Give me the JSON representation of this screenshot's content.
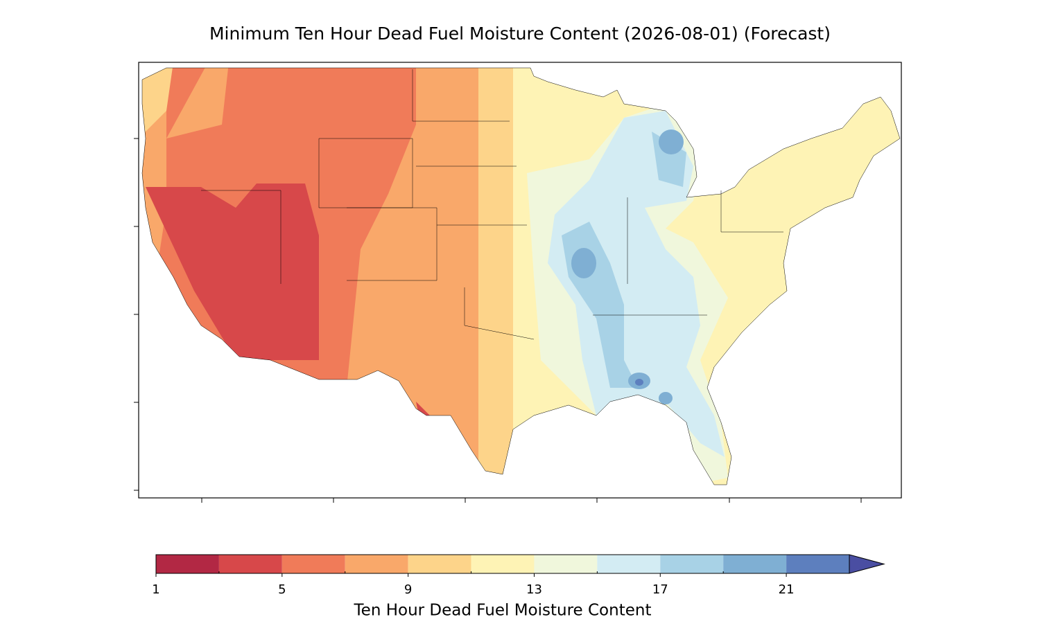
{
  "title": "Minimum Ten Hour Dead Fuel Moisture Content (2026-08-01) (Forecast)",
  "colorbar": {
    "label": "Ten Hour Dead Fuel Moisture Content",
    "levels": [
      1,
      3,
      5,
      7,
      9,
      11,
      13,
      15,
      17,
      19,
      21,
      23
    ],
    "colors": [
      "#b22844",
      "#d7484a",
      "#f07b59",
      "#f9a86a",
      "#fdd48a",
      "#fef3b5",
      "#f0f7dc",
      "#d3ecf3",
      "#a8d2e6",
      "#7fafd3",
      "#5d7fbe"
    ],
    "extend_color": "#4a4ea2",
    "ticks": [
      1,
      5,
      9,
      13,
      17,
      21
    ]
  }
}
